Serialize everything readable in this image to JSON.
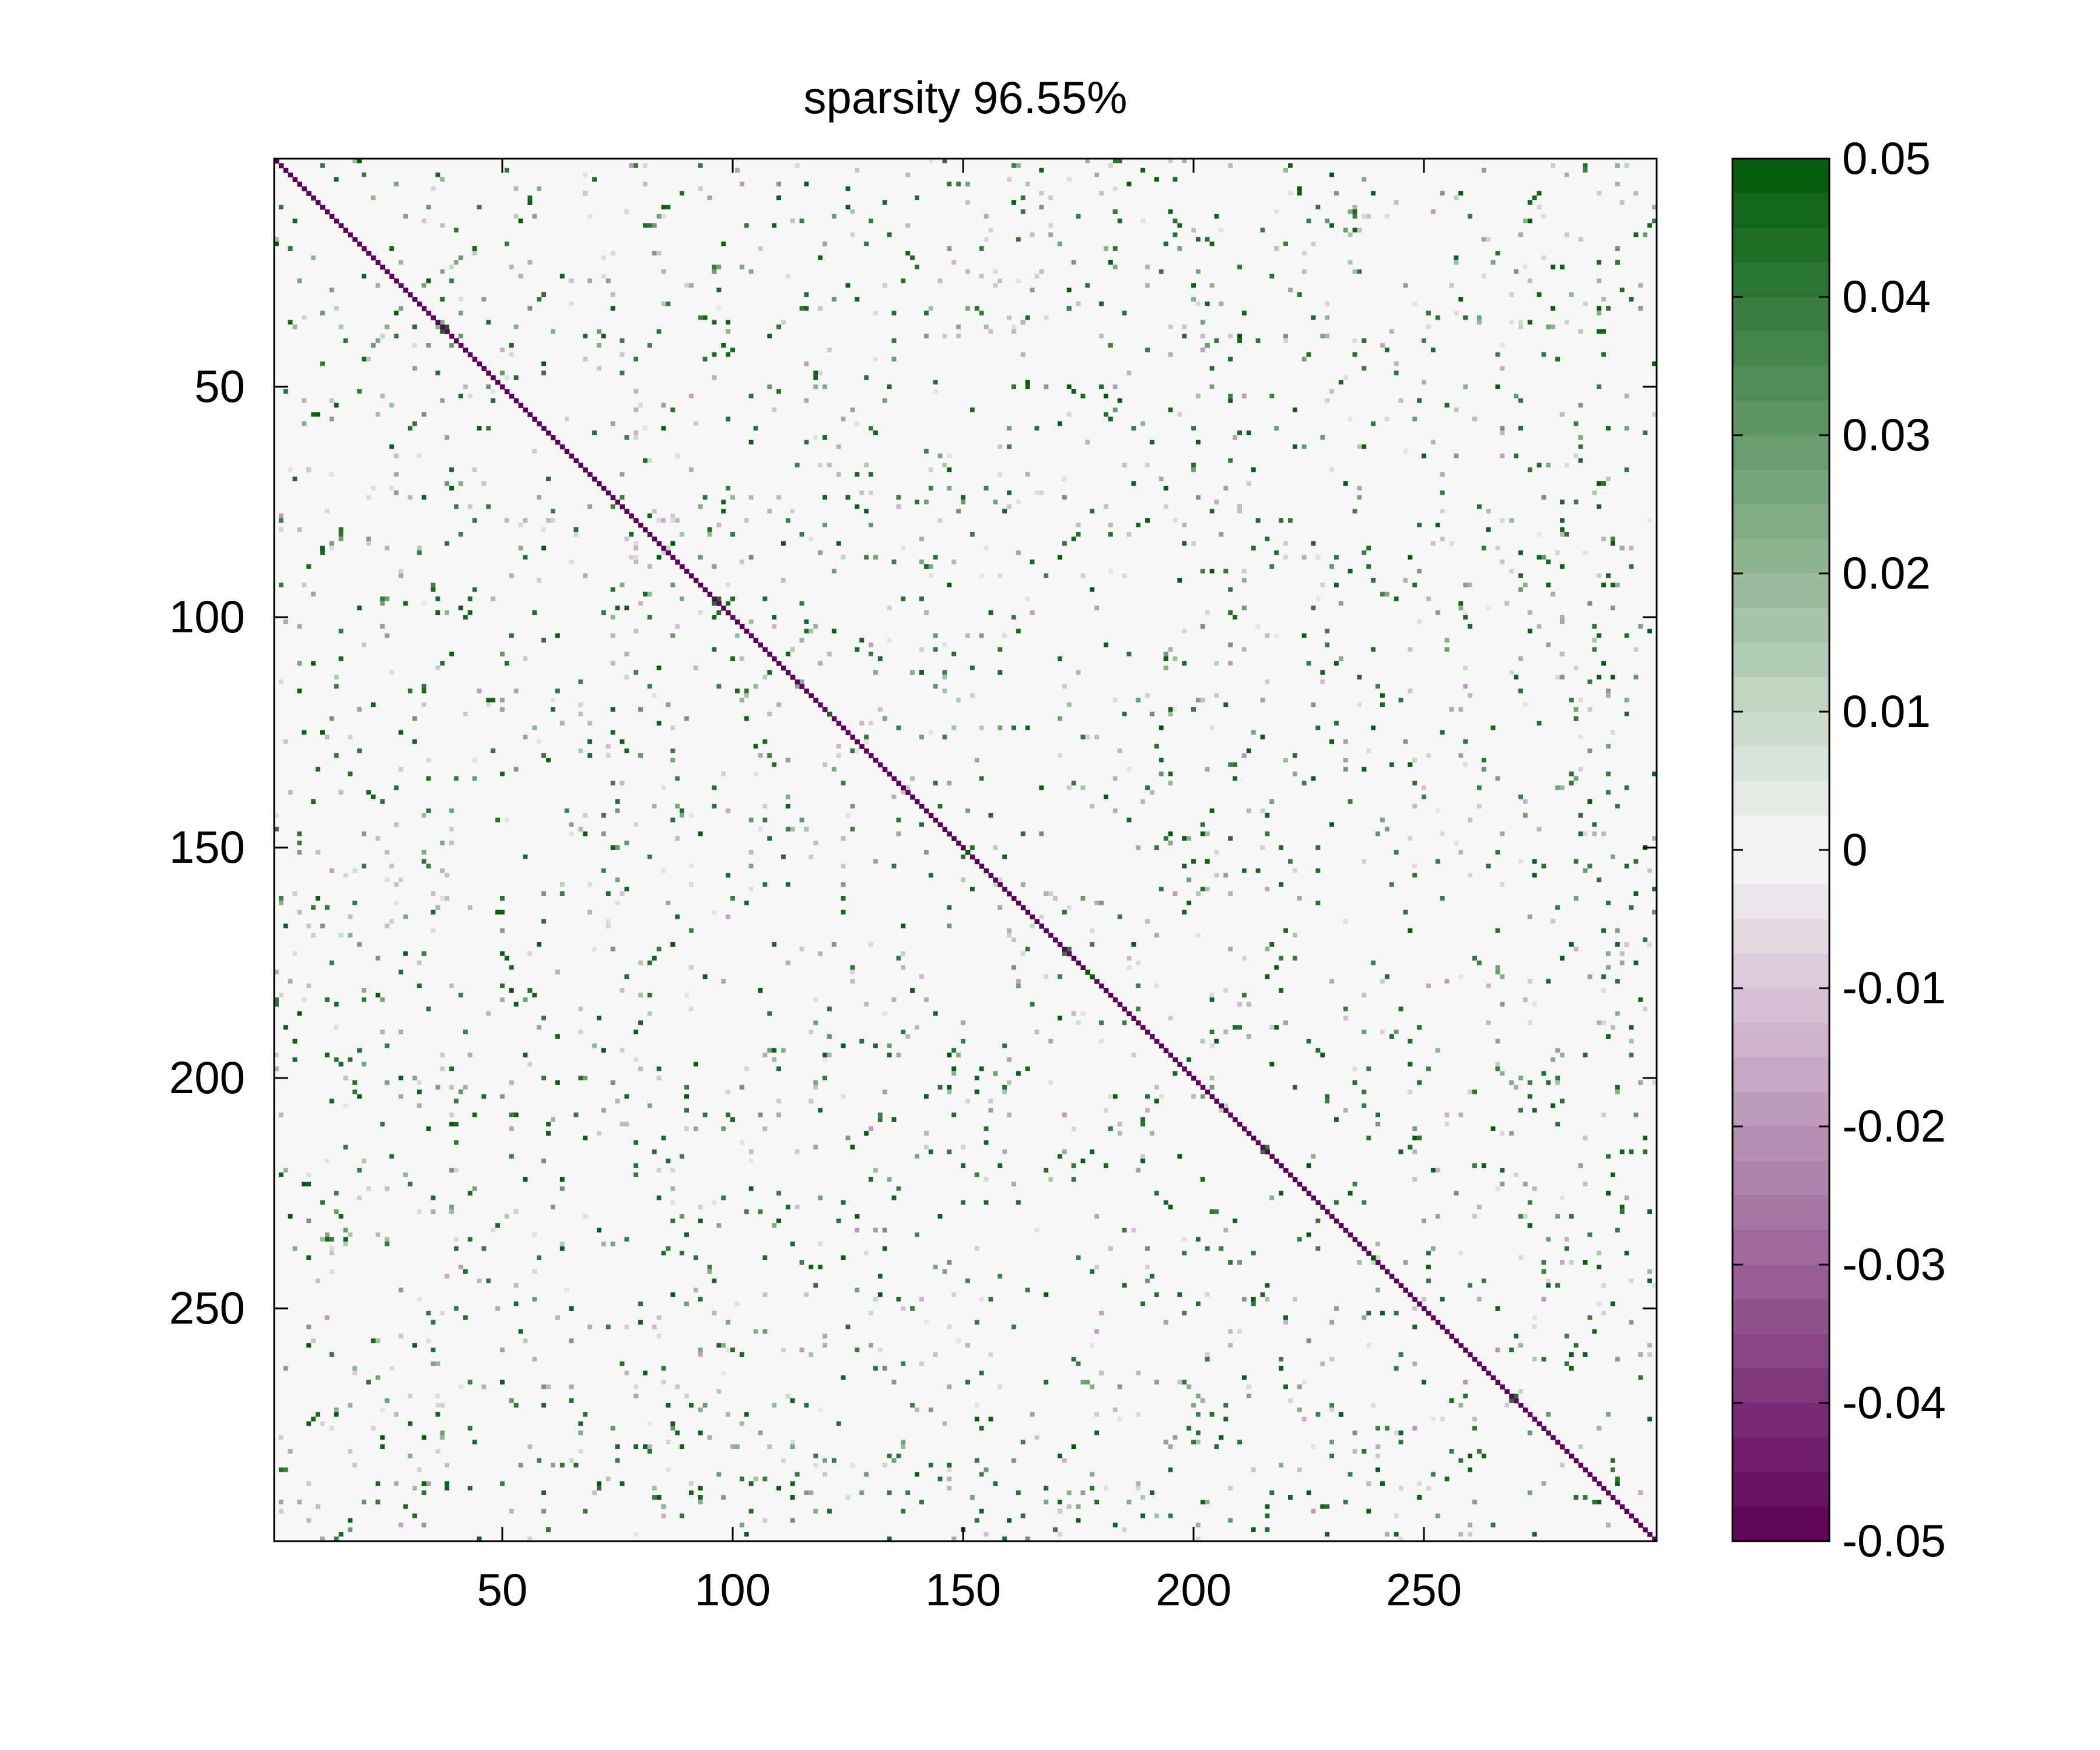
{
  "chart_data": {
    "type": "heatmap",
    "title": "sparsity 96.55%",
    "xlabel": "",
    "ylabel": "",
    "matrix_size": 300,
    "xlim": [
      0.5,
      300.5
    ],
    "ylim": [
      300.5,
      0.5
    ],
    "y_axis_direction": "top-to-bottom",
    "xticks": [
      50,
      100,
      150,
      200,
      250
    ],
    "yticks": [
      50,
      100,
      150,
      200,
      250
    ],
    "xtick_labels": [
      "50",
      "100",
      "150",
      "200",
      "250"
    ],
    "ytick_labels": [
      "50",
      "100",
      "150",
      "200",
      "250"
    ],
    "colorbar": {
      "range": [
        -0.05,
        0.05
      ],
      "levels": 40,
      "ticks": [
        0.05,
        0.04,
        0.03,
        0.02,
        0.01,
        0,
        -0.01,
        -0.02,
        -0.03,
        -0.04,
        -0.05
      ],
      "tick_labels": [
        "0.05",
        "0.04",
        "0.03",
        "0.02",
        "0.01",
        "0",
        "-0.01",
        "-0.02",
        "-0.03",
        "-0.04",
        "-0.05"
      ],
      "placement": "right",
      "colors": {
        "min": "#5e0058",
        "mid": "#f7f7f7",
        "max": "#005a08"
      }
    },
    "background_value": 0,
    "diagonal_value": -0.05,
    "highlighted_diagonal_entries": [
      {
        "i": 121,
        "value": 0.045
      },
      {
        "i": 151,
        "value": 0.05
      },
      {
        "i": 177,
        "value": 0.05
      },
      {
        "i": 178,
        "value": 0.05
      },
      {
        "i": 239,
        "value": 0.05
      }
    ],
    "off_diagonal_density": 0.0345,
    "off_diagonal_value_range": [
      -0.02,
      0.05
    ]
  }
}
